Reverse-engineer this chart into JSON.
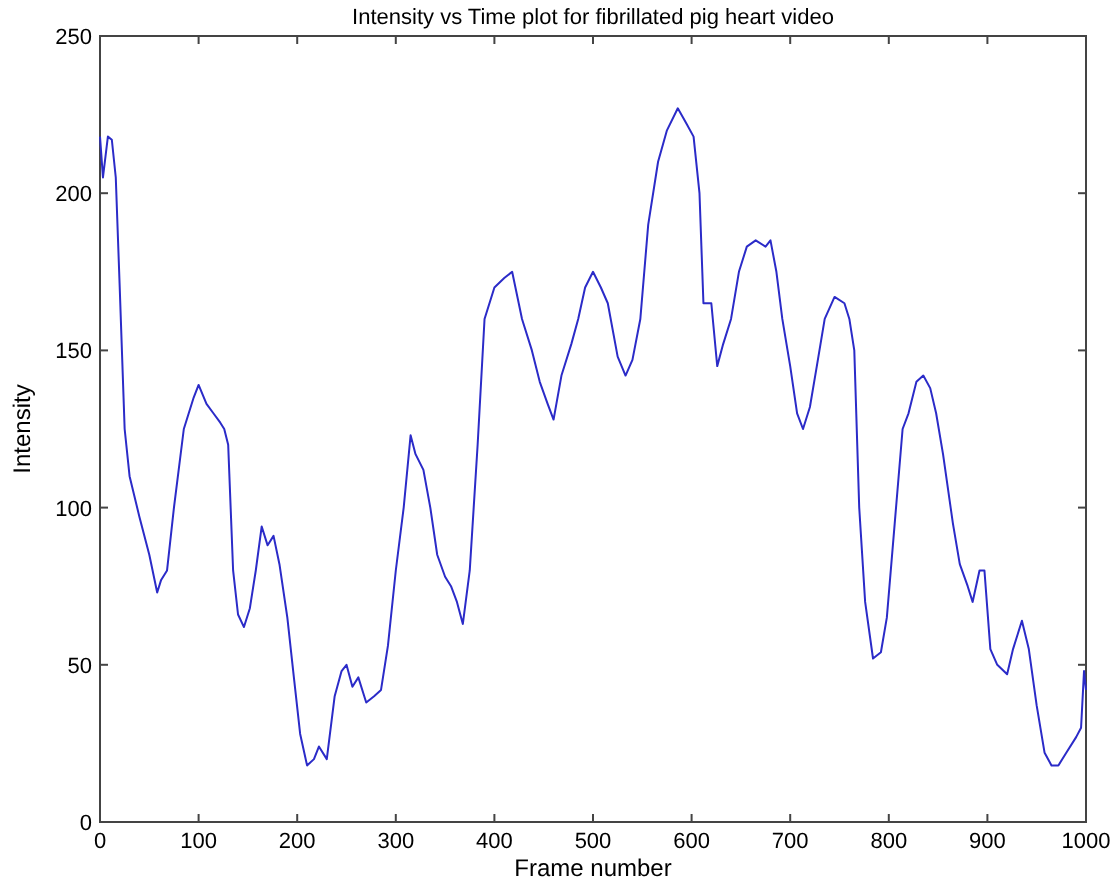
{
  "chart_data": {
    "type": "line",
    "title": "Intensity vs Time plot for fibrillated pig heart video",
    "xlabel": "Frame number",
    "ylabel": "Intensity",
    "xlim": [
      0,
      1000
    ],
    "ylim": [
      0,
      250
    ],
    "xticks": [
      0,
      100,
      200,
      300,
      400,
      500,
      600,
      700,
      800,
      900,
      1000
    ],
    "yticks": [
      0,
      50,
      100,
      150,
      200,
      250
    ],
    "grid": false,
    "series": [
      {
        "color": "#2b2bc8",
        "x": [
          0,
          3,
          8,
          12,
          16,
          20,
          25,
          30,
          40,
          50,
          58,
          62,
          68,
          75,
          85,
          95,
          100,
          108,
          115,
          122,
          126,
          130,
          135,
          140,
          146,
          152,
          158,
          164,
          170,
          176,
          182,
          190,
          197,
          203,
          210,
          217,
          222,
          230,
          238,
          245,
          250,
          256,
          262,
          270,
          278,
          285,
          292,
          300,
          308,
          315,
          320,
          328,
          335,
          342,
          350,
          356,
          362,
          368,
          375,
          383,
          390,
          400,
          410,
          418,
          428,
          438,
          446,
          454,
          460,
          468,
          478,
          485,
          492,
          500,
          508,
          515,
          525,
          533,
          540,
          548,
          556,
          566,
          575,
          586,
          595,
          602,
          608,
          612,
          620,
          626,
          632,
          640,
          648,
          656,
          665,
          675,
          680,
          686,
          692,
          700,
          707,
          713,
          720,
          727,
          735,
          745,
          755,
          760,
          765,
          770,
          776,
          784,
          792,
          798,
          806,
          814,
          820,
          828,
          835,
          842,
          848,
          855,
          865,
          872,
          880,
          885,
          892,
          897,
          903,
          910,
          920,
          926,
          935,
          942,
          950,
          958,
          965,
          972,
          980,
          990,
          995,
          998,
          1000
        ],
        "values": [
          218,
          205,
          218,
          217,
          205,
          170,
          125,
          110,
          97,
          85,
          73,
          77,
          80,
          100,
          125,
          135,
          139,
          133,
          130,
          127,
          125,
          120,
          80,
          66,
          62,
          68,
          80,
          94,
          88,
          91,
          82,
          65,
          45,
          28,
          18,
          20,
          24,
          20,
          40,
          48,
          50,
          43,
          46,
          38,
          40,
          42,
          56,
          80,
          100,
          123,
          117,
          112,
          100,
          85,
          78,
          75,
          70,
          63,
          80,
          120,
          160,
          170,
          173,
          175,
          160,
          150,
          140,
          133,
          128,
          142,
          152,
          160,
          170,
          175,
          170,
          165,
          148,
          142,
          147,
          160,
          190,
          210,
          220,
          227,
          222,
          218,
          200,
          165,
          165,
          145,
          152,
          160,
          175,
          183,
          185,
          183,
          185,
          175,
          160,
          145,
          130,
          125,
          132,
          145,
          160,
          167,
          165,
          160,
          150,
          100,
          70,
          52,
          54,
          65,
          95,
          125,
          130,
          140,
          142,
          138,
          130,
          117,
          95,
          82,
          75,
          70,
          80,
          80,
          55,
          50,
          47,
          55,
          64,
          55,
          37,
          22,
          18,
          18,
          22,
          27,
          30,
          48,
          42
        ]
      }
    ]
  }
}
